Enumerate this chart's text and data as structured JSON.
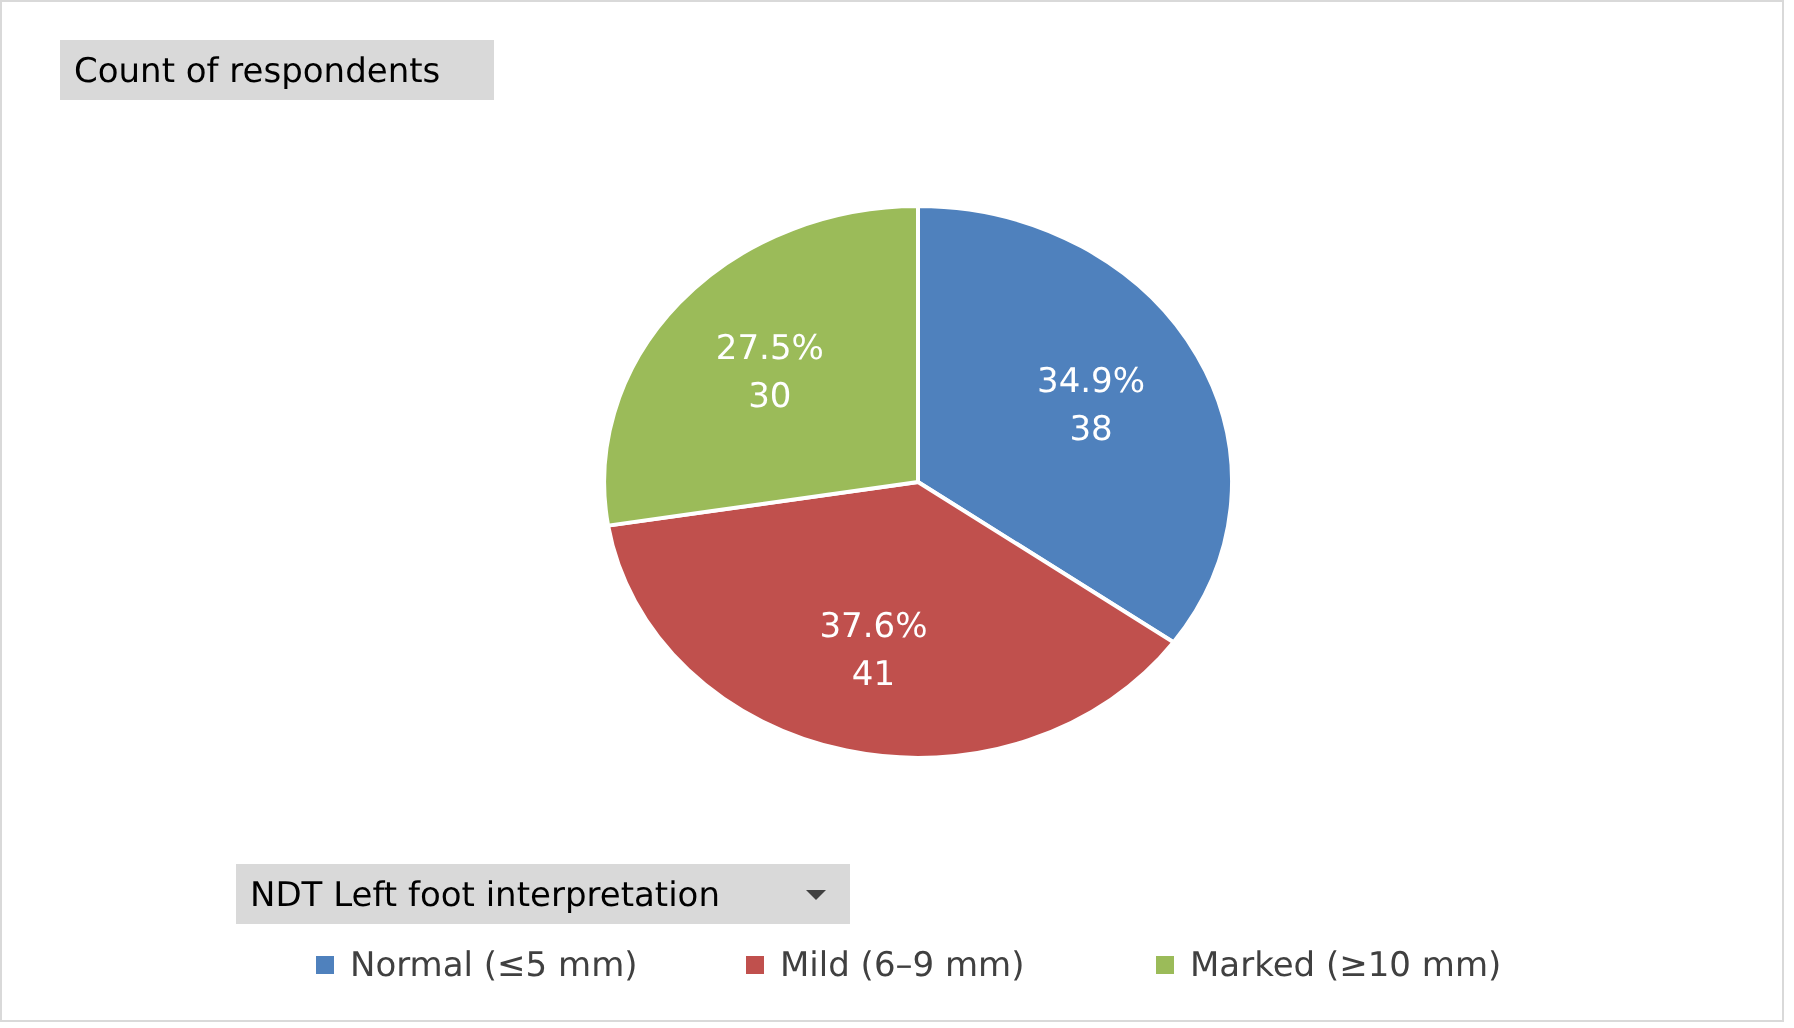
{
  "chart_data": {
    "type": "pie",
    "title": "Count of respondents",
    "legend_title": "NDT Left foot interpretation",
    "categories": [
      "Normal (≤5 mm)",
      "Mild (6–9 mm)",
      "Marked (≥10 mm)"
    ],
    "values": [
      38,
      41,
      30
    ],
    "colors": [
      "#4f81bd",
      "#c0504d",
      "#9bbb59"
    ],
    "value_labels": [
      "34.9%\n38",
      "37.6%\n41",
      "27.5%\n30"
    ],
    "legend": "bottom"
  }
}
